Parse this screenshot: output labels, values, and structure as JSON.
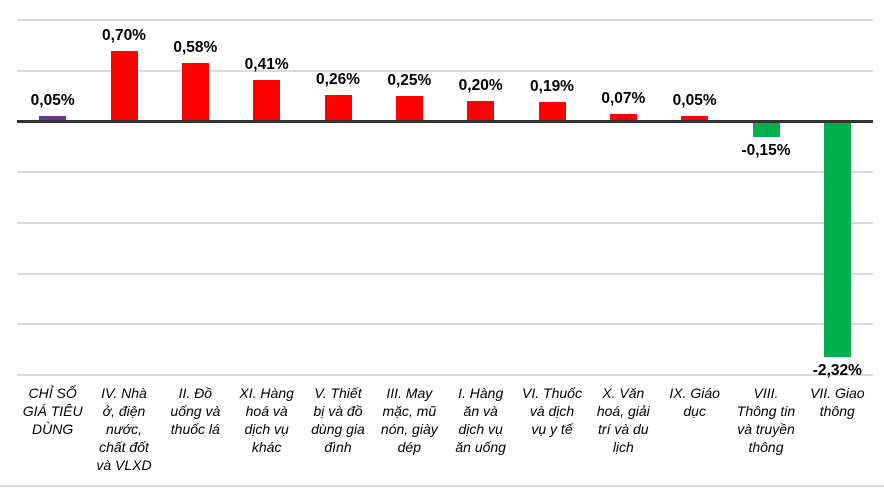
{
  "chart_data": {
    "type": "bar",
    "unit": "%",
    "decimal_separator": ",",
    "legend": "none",
    "grid": true,
    "gridline_interval": 0.5,
    "ylim": [
      -2.5,
      1.0
    ],
    "gridlines": [
      1.0,
      0.5,
      0,
      -0.5,
      -1.0,
      -1.5,
      -2.0,
      -2.5
    ],
    "colors": {
      "overall_cpi": "#7030A0",
      "increase": "#FF0000",
      "decrease": "#00B050",
      "zero_axis": "#333333",
      "gridline": "#DADADA",
      "label_text": "#000000"
    },
    "bars": [
      {
        "category": "CHỈ SỐ GIÁ TIÊU DÙNG",
        "label_wrapped": "CHỈ SỐ\nGIÁ TIÊU\nDÙNG",
        "value": 0.05,
        "value_label": "0,05%",
        "color": "#7030A0"
      },
      {
        "category": "IV. Nhà ở, điện nước, chất đốt và VLXD",
        "label_wrapped": "IV. Nhà\nở, điện\nnước,\nchất đốt\nvà VLXD",
        "value": 0.7,
        "value_label": "0,70%",
        "color": "#FF0000"
      },
      {
        "category": "II. Đồ uống và thuốc lá",
        "label_wrapped": "II. Đồ\nuống và\nthuốc lá",
        "value": 0.58,
        "value_label": "0,58%",
        "color": "#FF0000"
      },
      {
        "category": "XI. Hàng hoá và dịch vụ khác",
        "label_wrapped": "XI. Hàng\nhoá và\ndịch vụ\nkhác",
        "value": 0.41,
        "value_label": "0,41%",
        "color": "#FF0000"
      },
      {
        "category": "V. Thiết bị và đồ dùng gia đình",
        "label_wrapped": "V. Thiết\nbị và đồ\ndùng gia\nđình",
        "value": 0.26,
        "value_label": "0,26%",
        "color": "#FF0000"
      },
      {
        "category": "III. May mặc, mũ nón, giày dép",
        "label_wrapped": "III. May\nmặc, mũ\nnón, giày\ndép",
        "value": 0.25,
        "value_label": "0,25%",
        "color": "#FF0000"
      },
      {
        "category": "I. Hàng ăn và dịch vụ ăn uống",
        "label_wrapped": "I. Hàng\năn và\ndịch vụ\năn uống",
        "value": 0.2,
        "value_label": "0,20%",
        "color": "#FF0000"
      },
      {
        "category": "VI. Thuốc và dịch vụ y tế",
        "label_wrapped": "VI. Thuốc\nvà dịch\nvụ y tế",
        "value": 0.19,
        "value_label": "0,19%",
        "color": "#FF0000"
      },
      {
        "category": "X. Văn hoá, giải trí và du lịch",
        "label_wrapped": "X. Văn\nhoá, giải\ntrí và du\nlịch",
        "value": 0.07,
        "value_label": "0,07%",
        "color": "#FF0000"
      },
      {
        "category": "IX. Giáo dục",
        "label_wrapped": "IX. Giáo\ndục",
        "value": 0.05,
        "value_label": "0,05%",
        "color": "#FF0000"
      },
      {
        "category": "VIII. Thông tin và truyền thông",
        "label_wrapped": "VIII.\nThông tin\nvà truyền\nthông",
        "value": -0.15,
        "value_label": "-0,15%",
        "color": "#00B050"
      },
      {
        "category": "VII. Giao thông",
        "label_wrapped": "VII. Giao\nthông",
        "value": -2.32,
        "value_label": "-2,32%",
        "color": "#00B050"
      }
    ]
  }
}
